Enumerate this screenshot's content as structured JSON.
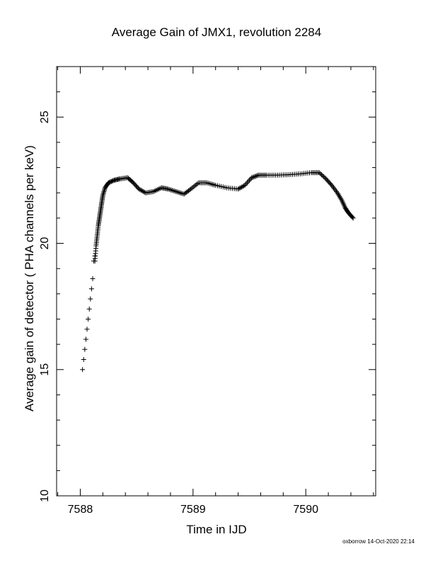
{
  "page": {
    "footer_stamp": "oxborrow 14-Oct-2020 22:14"
  },
  "chart_data": {
    "type": "scatter",
    "title": "Average Gain of JMX1, revolution 2284",
    "xlabel": "Time in IJD",
    "ylabel": "Average gain of detector ( PHA channels per keV)",
    "xlim": [
      7587.79,
      7590.62
    ],
    "ylim": [
      10,
      27
    ],
    "x_ticks": [
      7588,
      7589,
      7590
    ],
    "y_ticks": [
      10,
      15,
      20,
      25
    ],
    "grid": false,
    "marker": "plus",
    "color": "#000000",
    "series": [
      {
        "x": [
          7588.02,
          7588.03,
          7588.04,
          7588.05,
          7588.06,
          7588.07,
          7588.08,
          7588.09,
          7588.1,
          7588.11,
          7588.12,
          7588.13,
          7588.13,
          7588.14,
          7588.15,
          7588.16,
          7588.17,
          7588.18,
          7588.19,
          7588.2,
          7588.22,
          7588.25,
          7588.3,
          7588.35,
          7588.42,
          7588.47,
          7588.52,
          7588.58,
          7588.65,
          7588.72,
          7588.78,
          7588.85,
          7588.92,
          7588.98,
          7589.05,
          7589.12,
          7589.2,
          7589.3,
          7589.4,
          7589.46,
          7589.52,
          7589.58,
          7589.65,
          7589.75,
          7589.85,
          7589.95,
          7590.05,
          7590.12,
          7590.18,
          7590.23,
          7590.28,
          7590.32,
          7590.35,
          7590.38,
          7590.42
        ],
        "y": [
          15.0,
          15.4,
          15.8,
          16.2,
          16.6,
          17.0,
          17.4,
          17.8,
          18.2,
          18.6,
          19.3,
          19.5,
          19.3,
          19.9,
          20.3,
          20.7,
          21.0,
          21.3,
          21.6,
          21.9,
          22.2,
          22.4,
          22.5,
          22.55,
          22.6,
          22.4,
          22.15,
          22.0,
          22.05,
          22.2,
          22.15,
          22.05,
          21.95,
          22.15,
          22.4,
          22.4,
          22.3,
          22.2,
          22.15,
          22.3,
          22.6,
          22.7,
          22.7,
          22.7,
          22.72,
          22.75,
          22.8,
          22.8,
          22.55,
          22.3,
          22.0,
          21.7,
          21.4,
          21.2,
          21.0
        ]
      }
    ]
  }
}
